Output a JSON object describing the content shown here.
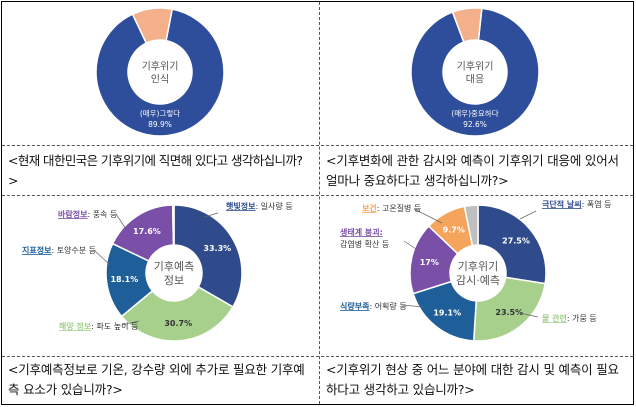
{
  "chart_data": [
    {
      "type": "pie",
      "center_label": [
        "기후위기",
        "인식"
      ],
      "slices": [
        {
          "label": "(매우)그렇다",
          "value": 89.9,
          "color": "#2e4e9b"
        },
        {
          "label": "",
          "value": 10.1,
          "color": "#f3b08a"
        }
      ],
      "value_labels": [
        "(매우)그렇다",
        "89.9%"
      ]
    },
    {
      "type": "pie",
      "center_label": [
        "기후위기",
        "대응"
      ],
      "slices": [
        {
          "label": "(매우)중요하다",
          "value": 92.6,
          "color": "#2e4e9b"
        },
        {
          "label": "",
          "value": 7.4,
          "color": "#f3b08a"
        }
      ],
      "value_labels": [
        "(매우)중요하다",
        "92.6%"
      ]
    },
    {
      "type": "pie",
      "center_label": [
        "기후예측",
        "정보"
      ],
      "slices": [
        {
          "category": "햇빛정보",
          "detail": ": 일사량 등",
          "value": 33.3,
          "color": "#2f4b8c"
        },
        {
          "category": "해양 정보",
          "detail": ": 파도 높이 등",
          "value": 30.7,
          "color": "#a8d08d"
        },
        {
          "category": "지표정보",
          "detail": ": 토양수분 등",
          "value": 18.1,
          "color": "#1f5f99"
        },
        {
          "category": "바람정보",
          "detail": ": 풍속 등",
          "value": 17.6,
          "color": "#7a4fa8"
        },
        {
          "category": "",
          "detail": "",
          "value": 0.3,
          "color": "#bfbfbf"
        }
      ],
      "value_labels": [
        "33.3%",
        "30.7%",
        "18.1%",
        "17.6%"
      ]
    },
    {
      "type": "pie",
      "center_label": [
        "기후위기",
        "감시·예측"
      ],
      "slices": [
        {
          "category": "극단적 날씨",
          "detail": ": 폭염 등",
          "value": 27.5,
          "color": "#2f4b8c"
        },
        {
          "category": "물 관련",
          "detail": ": 가뭄 등",
          "value": 23.5,
          "color": "#a8d08d"
        },
        {
          "category": "식량부족",
          "detail": ": 어획량 등",
          "value": 19.1,
          "color": "#1f5f99"
        },
        {
          "category": "생태계 붕괴",
          "detail": ": 감염병 확산 등",
          "value": 17.0,
          "color": "#7a4fa8"
        },
        {
          "category": "보건",
          "detail": ": 고온질병 등",
          "value": 9.7,
          "color": "#f5a55b"
        },
        {
          "category": "",
          "detail": "",
          "value": 3.2,
          "color": "#bfbfbf"
        }
      ],
      "value_labels": [
        "27.5%",
        "23.5%",
        "19.1%",
        "17%",
        "9.7%"
      ]
    }
  ],
  "questions": {
    "q1": "<현재 대한민국은 기후위기에 직면해 있다고 생각하십니까?>",
    "q2": "<기후변화에 관한 감시와 예측이 기후위기 대응에 있어서 얼마나 중요하다고 생각하십니까?>",
    "q3": "<기후예측정보로 기온, 강수량 외에 추가로 필요한 기후예측 요소가 있습니까?>",
    "q4": "<기후위기 현상 중 어느 분야에 대한 감시 및 예측이 필요하다고 생각하고 있습니까?>"
  }
}
